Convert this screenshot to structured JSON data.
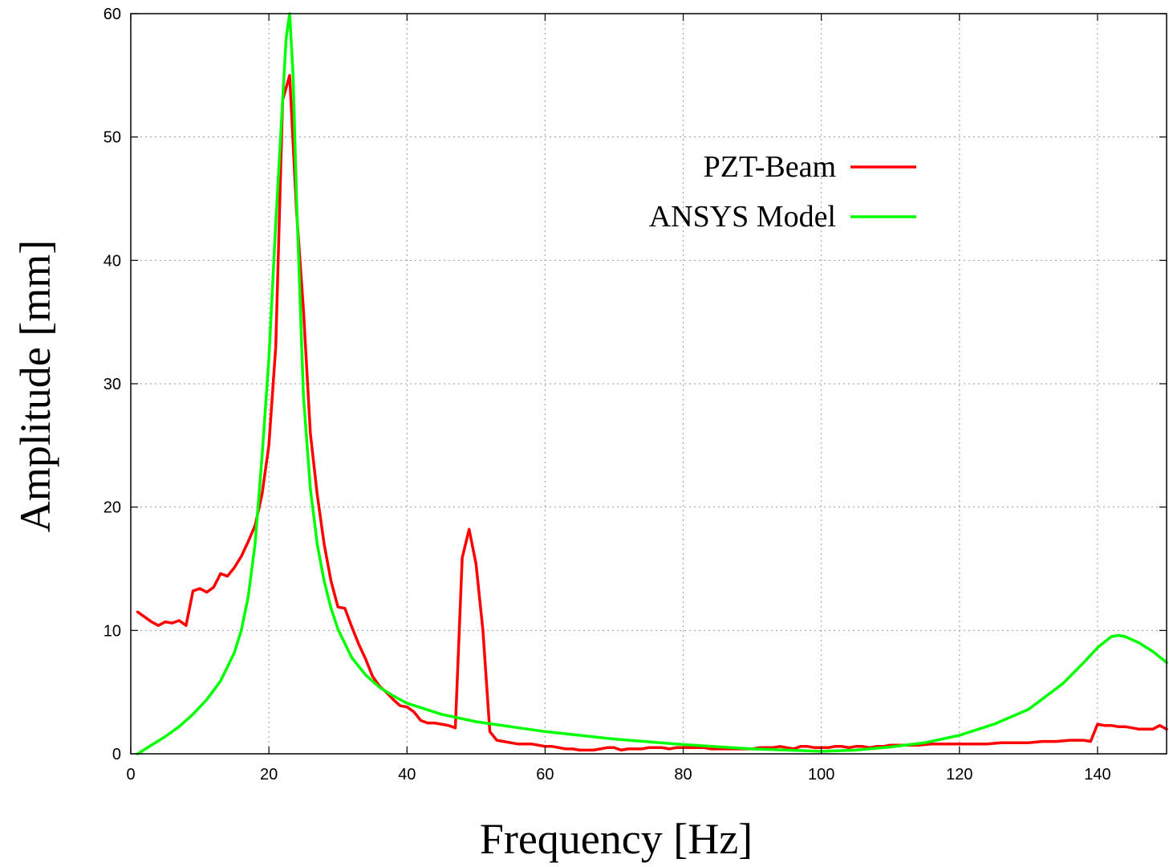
{
  "chart_data": {
    "type": "line",
    "title": "",
    "xlabel": "Frequency [Hz]",
    "ylabel": "Amplitude [mm]",
    "xlim": [
      0,
      150
    ],
    "ylim": [
      0,
      60
    ],
    "x_ticks": [
      0,
      20,
      40,
      60,
      80,
      100,
      120,
      140
    ],
    "y_ticks": [
      0,
      10,
      20,
      30,
      40,
      50,
      60
    ],
    "grid": true,
    "legend_position": "top-right",
    "series": [
      {
        "name": "PZT-Beam",
        "color": "#ff0000",
        "x": [
          1,
          2,
          3,
          4,
          5,
          6,
          7,
          8,
          9,
          10,
          11,
          12,
          13,
          14,
          15,
          16,
          17,
          18,
          19,
          20,
          21,
          22,
          23,
          24,
          25,
          26,
          27,
          28,
          29,
          30,
          31,
          32,
          33,
          34,
          35,
          36,
          37,
          38,
          39,
          40,
          41,
          42,
          43,
          44,
          45,
          46,
          47,
          48,
          49,
          50,
          51,
          52,
          53,
          54,
          55,
          56,
          57,
          58,
          59,
          60,
          61,
          62,
          63,
          64,
          65,
          66,
          67,
          68,
          69,
          70,
          71,
          72,
          73,
          74,
          75,
          76,
          77,
          78,
          79,
          80,
          81,
          82,
          83,
          84,
          85,
          86,
          87,
          88,
          89,
          90,
          91,
          92,
          93,
          94,
          95,
          96,
          97,
          98,
          99,
          100,
          101,
          102,
          103,
          104,
          105,
          106,
          107,
          108,
          109,
          110,
          112,
          114,
          116,
          118,
          120,
          122,
          124,
          126,
          128,
          130,
          132,
          134,
          136,
          138,
          139,
          140,
          141,
          142,
          143,
          144,
          145,
          146,
          147,
          148,
          149,
          150
        ],
        "y": [
          11.5,
          11.1,
          10.7,
          10.4,
          10.7,
          10.6,
          10.8,
          10.4,
          13.2,
          13.4,
          13.1,
          13.5,
          14.6,
          14.4,
          15.1,
          16.0,
          17.2,
          18.5,
          21.0,
          25.0,
          33.0,
          53.0,
          55.0,
          44.0,
          36.0,
          26.0,
          21.0,
          17.0,
          14.0,
          11.9,
          11.8,
          10.3,
          8.9,
          7.7,
          6.3,
          5.5,
          5.0,
          4.4,
          3.9,
          3.8,
          3.4,
          2.7,
          2.5,
          2.5,
          2.4,
          2.3,
          2.1,
          15.9,
          18.2,
          15.4,
          10.0,
          1.8,
          1.1,
          1.0,
          0.9,
          0.8,
          0.8,
          0.8,
          0.7,
          0.6,
          0.6,
          0.5,
          0.4,
          0.4,
          0.3,
          0.3,
          0.3,
          0.4,
          0.5,
          0.5,
          0.3,
          0.4,
          0.4,
          0.4,
          0.5,
          0.5,
          0.5,
          0.4,
          0.5,
          0.5,
          0.5,
          0.5,
          0.5,
          0.4,
          0.4,
          0.4,
          0.4,
          0.4,
          0.4,
          0.4,
          0.5,
          0.5,
          0.5,
          0.6,
          0.5,
          0.4,
          0.6,
          0.6,
          0.5,
          0.5,
          0.5,
          0.6,
          0.6,
          0.5,
          0.6,
          0.6,
          0.5,
          0.6,
          0.6,
          0.7,
          0.7,
          0.7,
          0.8,
          0.8,
          0.8,
          0.8,
          0.8,
          0.9,
          0.9,
          0.9,
          1.0,
          1.0,
          1.1,
          1.1,
          1.0,
          2.4,
          2.3,
          2.3,
          2.2,
          2.2,
          2.1,
          2.0,
          2.0,
          2.0,
          2.3,
          2.0
        ]
      },
      {
        "name": "ANSYS Model",
        "color": "#00ff00",
        "x": [
          1,
          3,
          5,
          7,
          9,
          11,
          13,
          15,
          16,
          17,
          18,
          19,
          20,
          21,
          22,
          22.5,
          23,
          23.5,
          24,
          25,
          26,
          27,
          28,
          29,
          30,
          32,
          34,
          36,
          38,
          40,
          45,
          50,
          55,
          60,
          70,
          80,
          90,
          100,
          105,
          110,
          115,
          120,
          125,
          130,
          135,
          138,
          140,
          142,
          143,
          144,
          146,
          148,
          150
        ],
        "y": [
          0.0,
          0.7,
          1.4,
          2.2,
          3.2,
          4.4,
          5.9,
          8.2,
          10.0,
          12.7,
          17.0,
          24.0,
          32.0,
          43.0,
          53.0,
          58.0,
          60.0,
          55.0,
          45.0,
          29.0,
          21.5,
          17.0,
          14.0,
          11.8,
          10.1,
          7.8,
          6.4,
          5.4,
          4.7,
          4.1,
          3.2,
          2.6,
          2.2,
          1.8,
          1.2,
          0.75,
          0.4,
          0.2,
          0.3,
          0.55,
          0.9,
          1.5,
          2.4,
          3.6,
          5.7,
          7.4,
          8.6,
          9.5,
          9.6,
          9.5,
          9.0,
          8.3,
          7.4
        ]
      }
    ]
  }
}
